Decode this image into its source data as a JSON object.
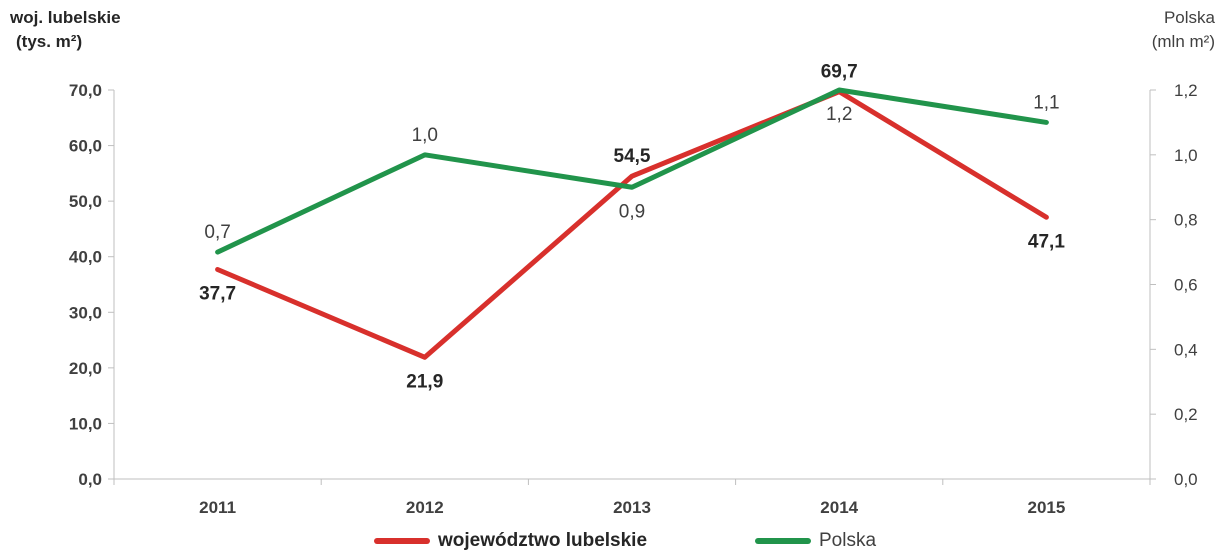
{
  "chart_data": {
    "type": "line",
    "categories": [
      "2011",
      "2012",
      "2013",
      "2014",
      "2015"
    ],
    "series": [
      {
        "name": "województwo lubelskie",
        "axis": "left",
        "color": "#d8302c",
        "values": [
          37.7,
          21.9,
          54.5,
          69.7,
          47.1
        ],
        "labels": [
          "37,7",
          "21,9",
          "54,5",
          "69,7",
          "47,1"
        ]
      },
      {
        "name": "Polska",
        "axis": "right",
        "color": "#21944b",
        "values": [
          0.7,
          1.0,
          0.9,
          1.2,
          1.1
        ],
        "labels": [
          "0,7",
          "1,0",
          "0,9",
          "1,2",
          "1,1"
        ]
      }
    ],
    "left_axis": {
      "title_line1": "woj. lubelskie",
      "title_line2": "(tys. m²)",
      "ylim": [
        0,
        70
      ],
      "ticks": [
        0,
        10,
        20,
        30,
        40,
        50,
        60,
        70
      ],
      "tick_labels": [
        "0,0",
        "10,0",
        "20,0",
        "30,0",
        "40,0",
        "50,0",
        "60,0",
        "70,0"
      ]
    },
    "right_axis": {
      "title_line1": "Polska",
      "title_line2": "(mln m²)",
      "ylim": [
        0,
        1.2
      ],
      "ticks": [
        0,
        0.2,
        0.4,
        0.6,
        0.8,
        1.0,
        1.2
      ],
      "tick_labels": [
        "0,0",
        "0,2",
        "0,4",
        "0,6",
        "0,8",
        "1,0",
        "1,2"
      ]
    },
    "grid": false,
    "legend_position": "bottom"
  }
}
